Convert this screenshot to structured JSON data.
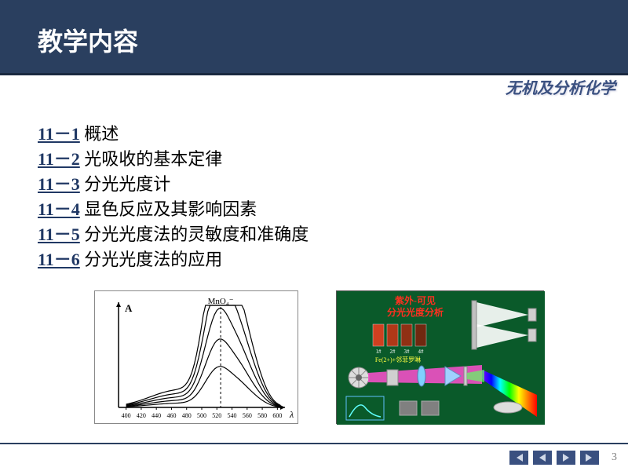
{
  "header": {
    "title": "教学内容",
    "subtitle": "无机及分析化学"
  },
  "toc": [
    {
      "num": "11－1",
      "text": "概述"
    },
    {
      "num": "11－2",
      "text": "光吸收的基本定律"
    },
    {
      "num": "11－3",
      "text": "分光光度计"
    },
    {
      "num": "11－4",
      "text": "显色反应及其影响因素"
    },
    {
      "num": "11－5",
      "text": "分光光度法的灵敏度和准确度"
    },
    {
      "num": "11－6",
      "text": "分光光度法的应用"
    }
  ],
  "spectrum_chart": {
    "type": "line",
    "y_label": "A",
    "peak_label": "MnO₄⁻",
    "x_ticks": [
      400,
      420,
      440,
      460,
      480,
      500,
      520,
      540,
      560,
      580,
      600
    ],
    "x_label": "λ",
    "xlim": [
      390,
      610
    ],
    "ylim": [
      0,
      1
    ],
    "curves": [
      {
        "scale": 1.0,
        "color": "#000000"
      },
      {
        "scale": 0.78,
        "color": "#000000"
      },
      {
        "scale": 0.58,
        "color": "#000000"
      },
      {
        "scale": 0.4,
        "color": "#000000"
      },
      {
        "scale": 0.24,
        "color": "#000000"
      }
    ],
    "peak_x": 525,
    "line_width": 1.2,
    "dash_x": 525,
    "background_color": "#ffffff"
  },
  "spectrometer_diagram": {
    "title_lines": [
      "紫外-可见",
      "分光光度分析"
    ],
    "title_color": "#ff3020",
    "background_color": "#0a5a2a",
    "cuvettes": {
      "colors": [
        "#d04020",
        "#b03818",
        "#903014",
        "#702810"
      ],
      "labels": [
        "1#",
        "2#",
        "3#",
        "4#"
      ],
      "caption": "Fe(2+)+邻菲罗啉",
      "caption_color": "#ffff40"
    },
    "light_source_color": "#ffffff",
    "beam_colors": {
      "white_beam": "#ffffff",
      "prism_beam": "#ff50d0",
      "slit_beam": "#60ff60"
    },
    "spectrum_gradient": [
      "#8000ff",
      "#0000ff",
      "#00ffff",
      "#00ff00",
      "#ffff00",
      "#ff8000",
      "#ff0000"
    ],
    "mini_graph": {
      "border_color": "#60c0ff",
      "curve_color": "#60ffff"
    }
  },
  "footer": {
    "page_number": "3"
  }
}
